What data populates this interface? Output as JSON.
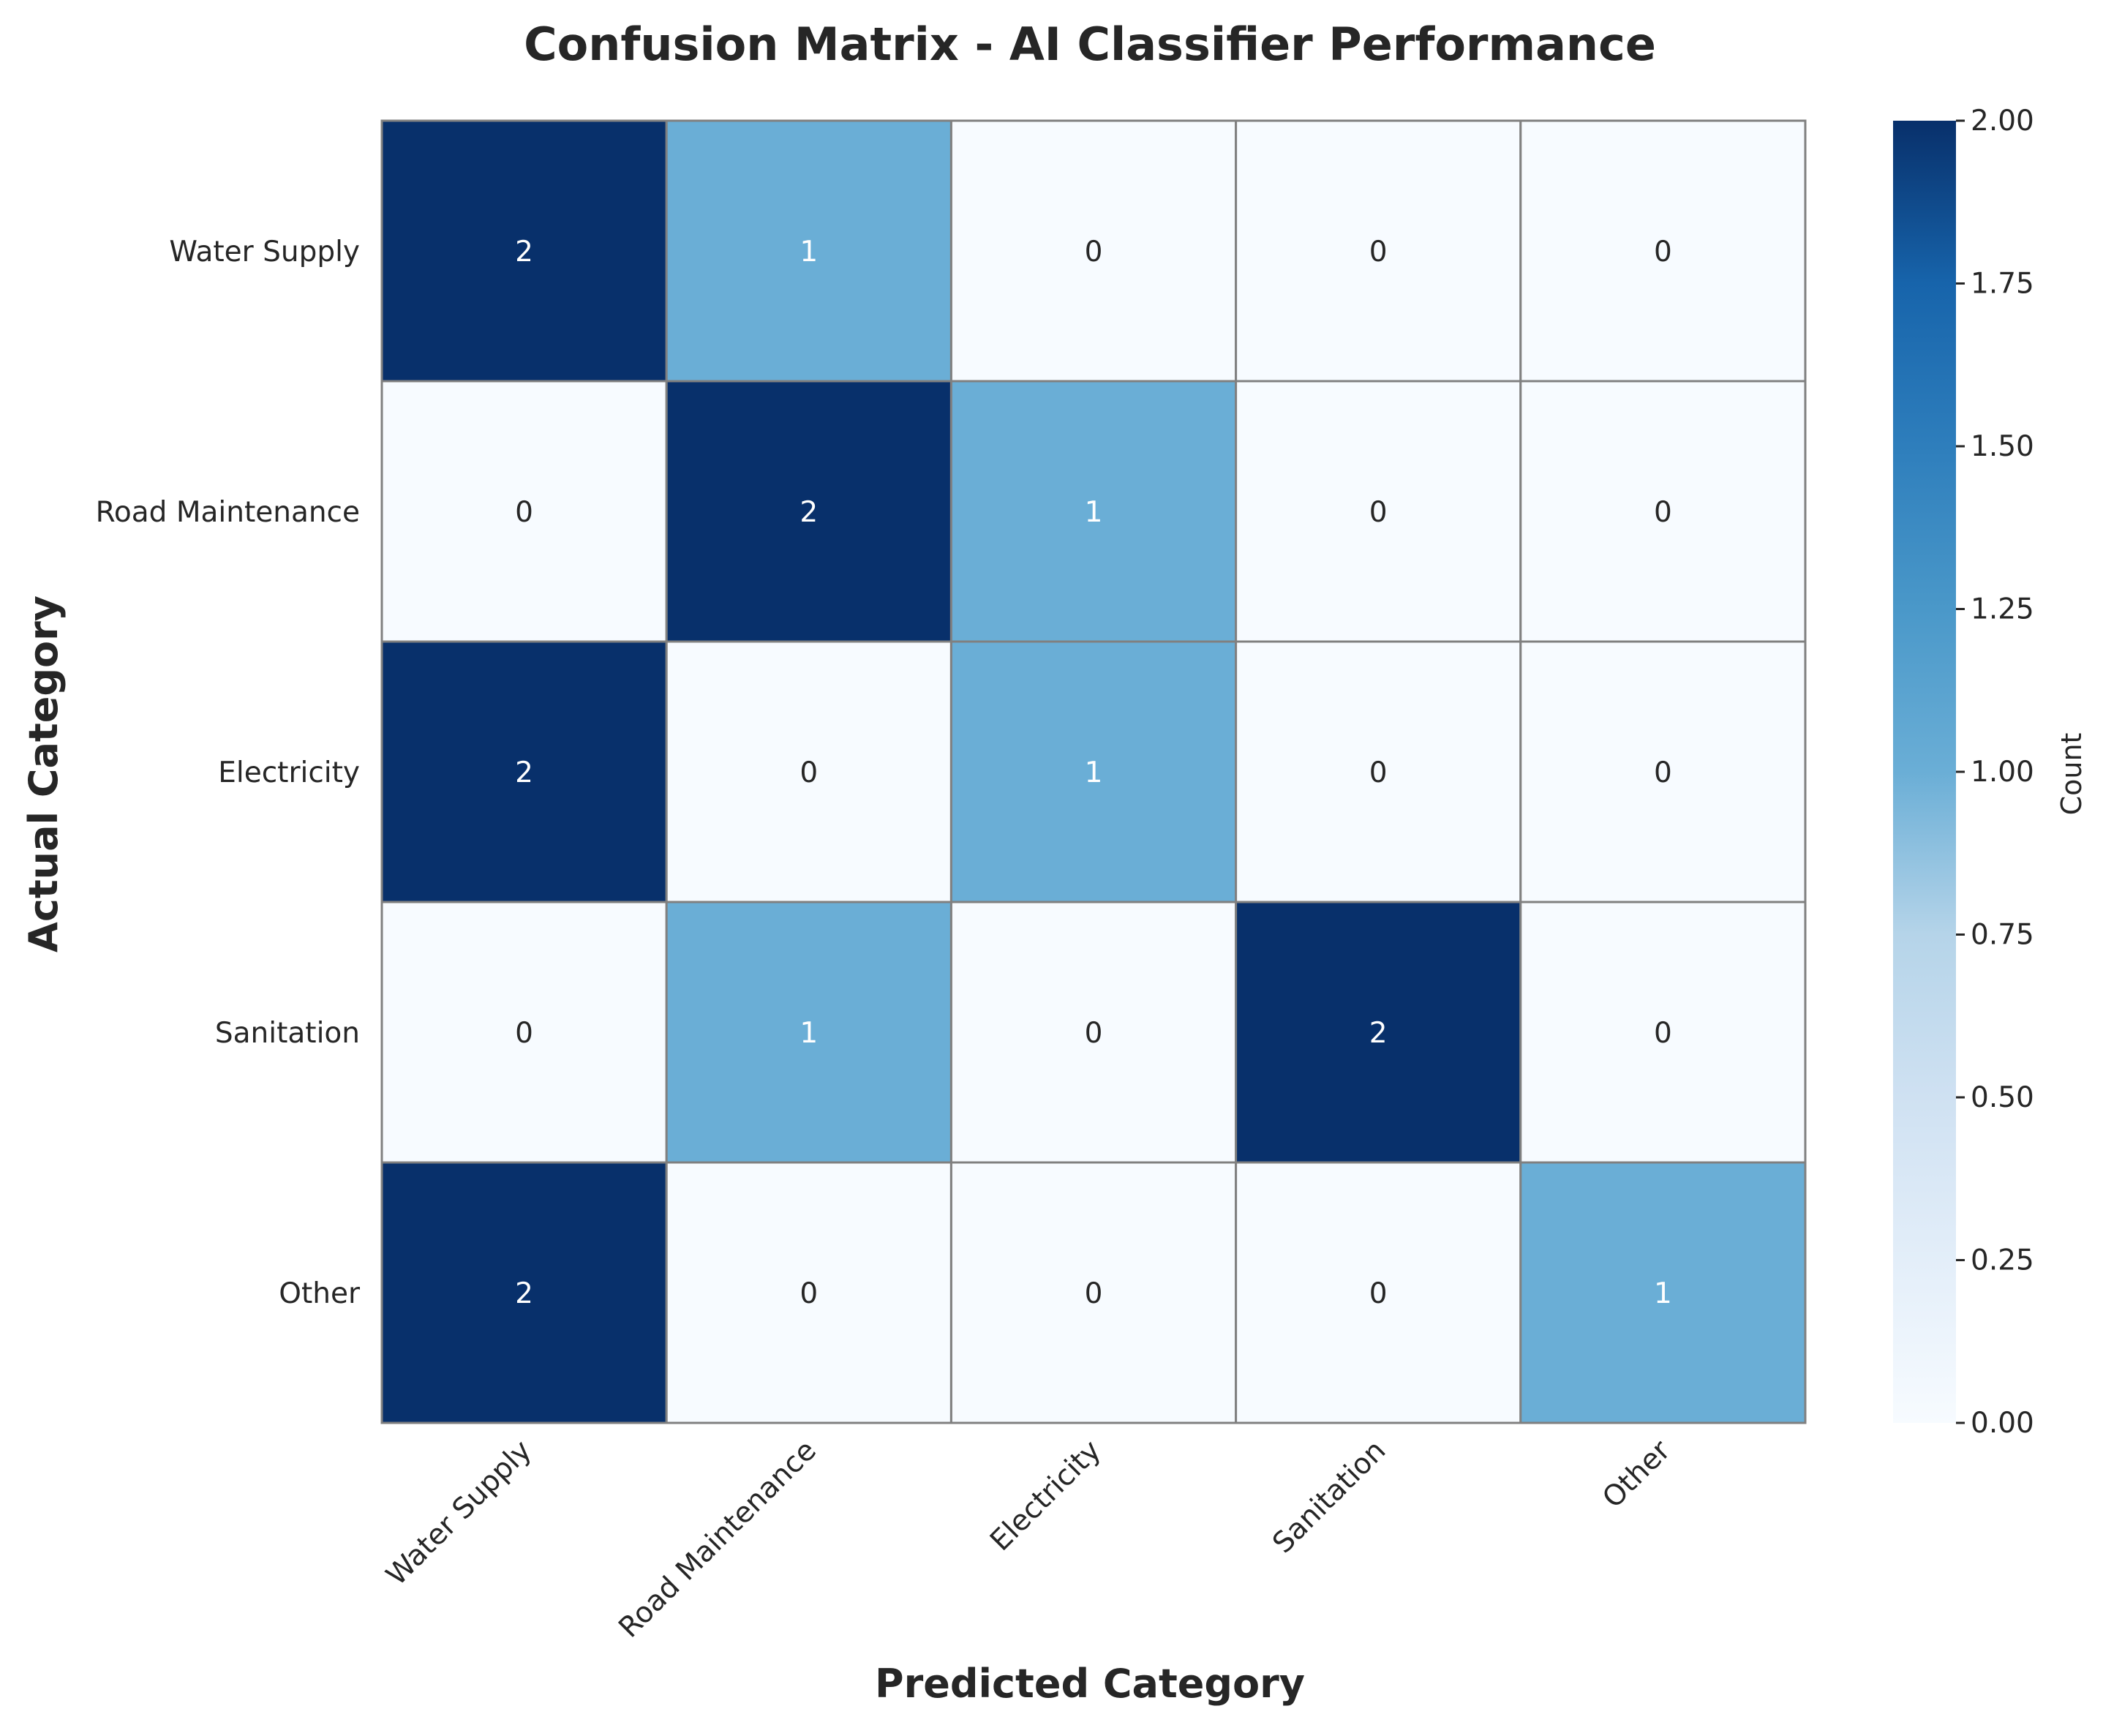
{
  "chart_data": {
    "type": "heatmap",
    "title": "Confusion Matrix - AI Classifier Performance",
    "xlabel": "Predicted Category",
    "ylabel": "Actual Category",
    "x_categories": [
      "Water Supply",
      "Road Maintenance",
      "Electricity",
      "Sanitation",
      "Other"
    ],
    "y_categories": [
      "Water Supply",
      "Road Maintenance",
      "Electricity",
      "Sanitation",
      "Other"
    ],
    "values": [
      [
        2,
        1,
        0,
        0,
        0
      ],
      [
        0,
        2,
        1,
        0,
        0
      ],
      [
        2,
        0,
        1,
        0,
        0
      ],
      [
        0,
        1,
        0,
        2,
        0
      ],
      [
        2,
        0,
        0,
        0,
        1
      ]
    ],
    "colorbar": {
      "label": "Count",
      "range": [
        0,
        2
      ],
      "ticks": [
        "0.00",
        "0.25",
        "0.50",
        "0.75",
        "1.00",
        "1.25",
        "1.50",
        "1.75",
        "2.00"
      ],
      "colormap": "Blues"
    },
    "cell_border_color": "#808080"
  }
}
